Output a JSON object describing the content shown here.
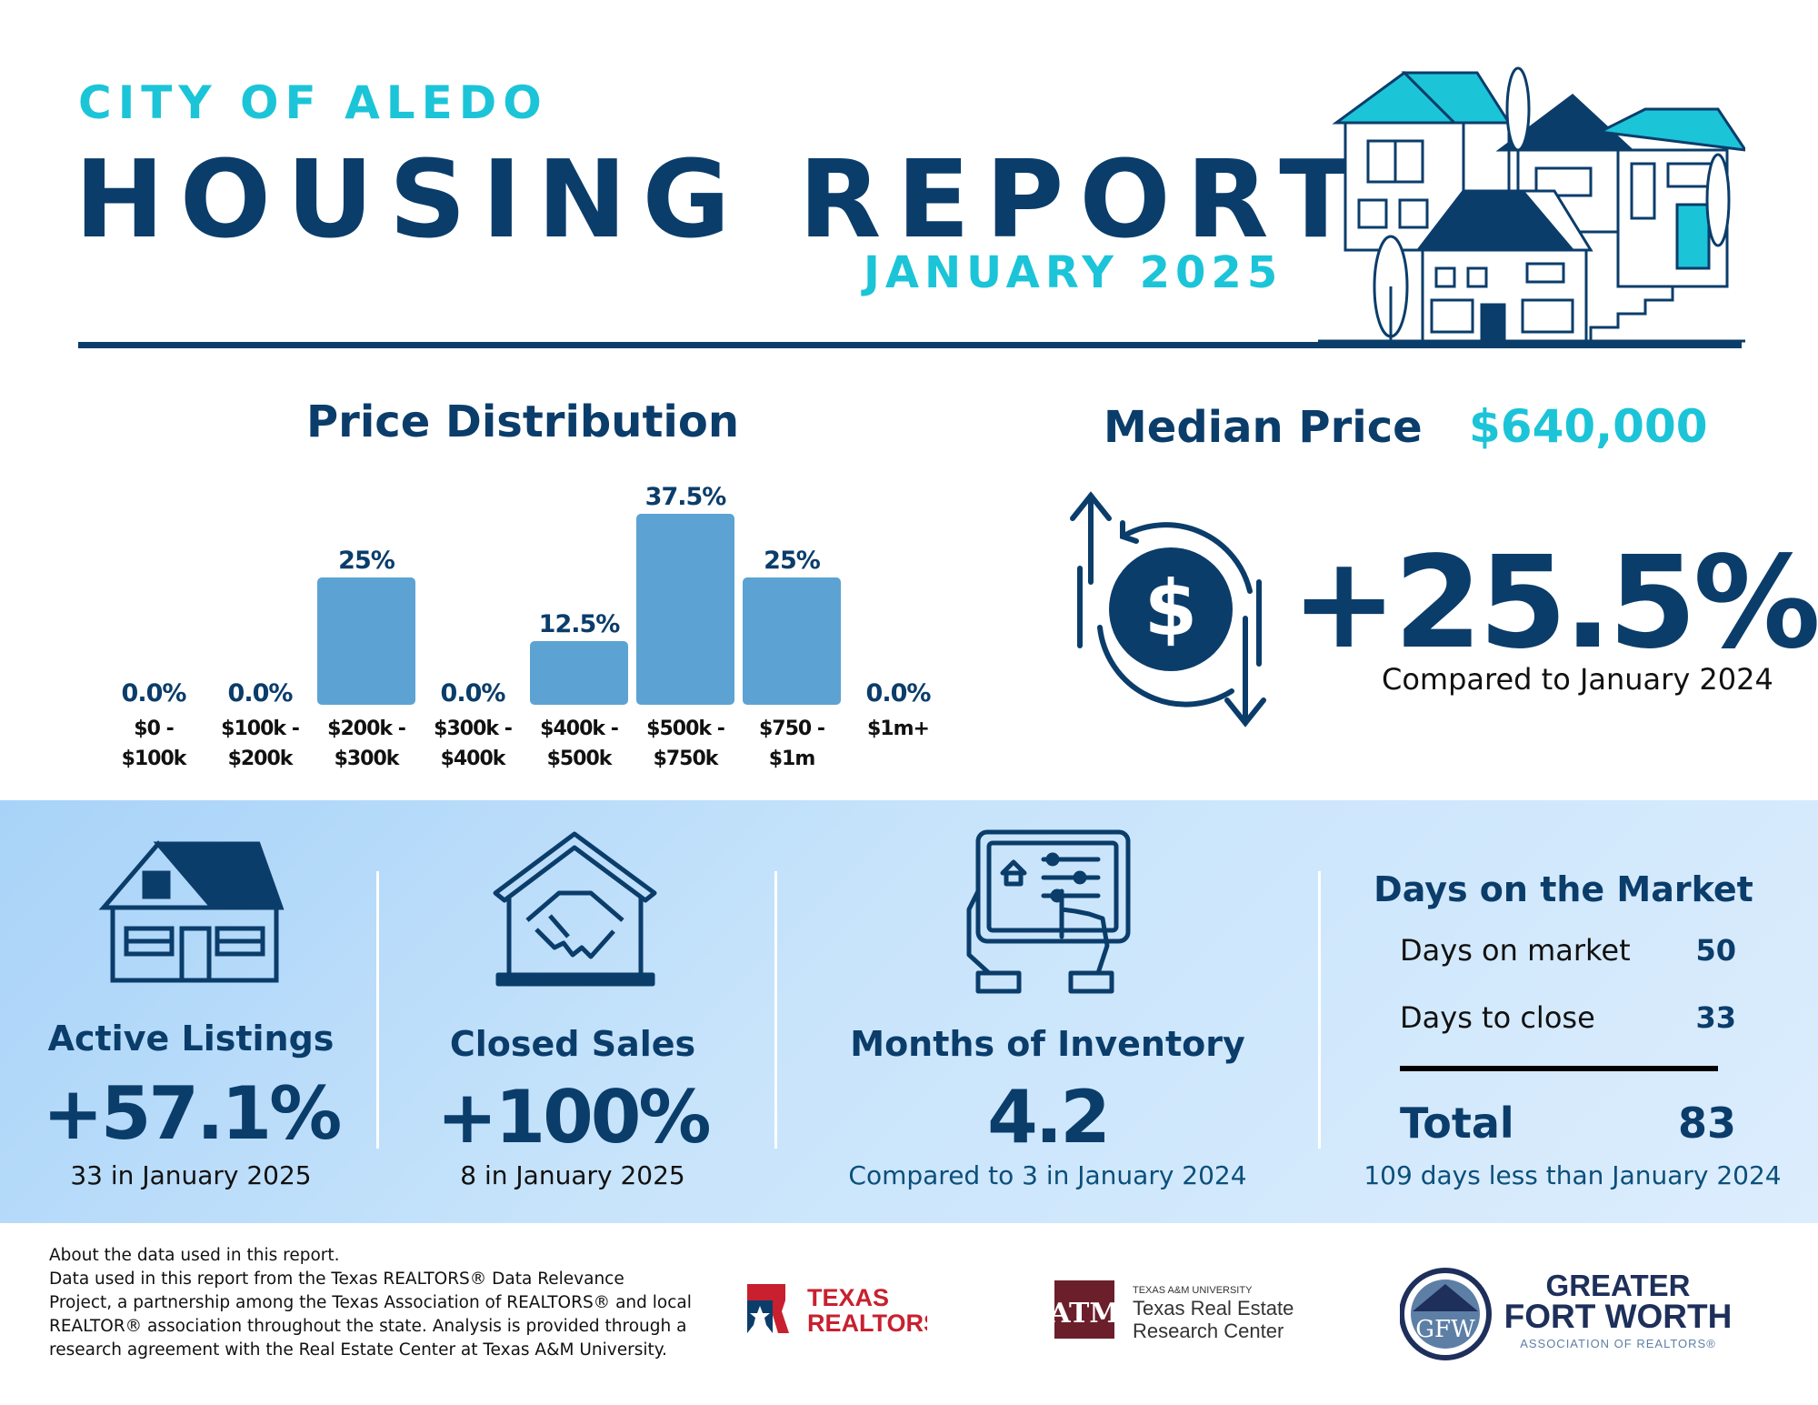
{
  "header": {
    "city": "CITY OF ALEDO",
    "title": "HOUSING REPORT",
    "month": "JANUARY 2025"
  },
  "price_distribution": {
    "title": "Price Distribution"
  },
  "chart_data": {
    "type": "bar",
    "title": "Price Distribution",
    "categories": [
      "$0 - $100k",
      "$100k - $200k",
      "$200k - $300k",
      "$300k - $400k",
      "$400k - $500k",
      "$500k - $750k",
      "$750 - $1m",
      "$1m+"
    ],
    "category_lines": [
      [
        "$0 -",
        "$100k"
      ],
      [
        "$100k -",
        "$200k"
      ],
      [
        "$200k -",
        "$300k"
      ],
      [
        "$300k -",
        "$400k"
      ],
      [
        "$400k -",
        "$500k"
      ],
      [
        "$500k -",
        "$750k"
      ],
      [
        "$750 -",
        "$1m"
      ],
      [
        "$1m+",
        ""
      ]
    ],
    "values": [
      0.0,
      0.0,
      25,
      0.0,
      12.5,
      37.5,
      25,
      0.0
    ],
    "value_labels": [
      "0.0%",
      "0.0%",
      "25%",
      "0.0%",
      "12.5%",
      "37.5%",
      "25%",
      "0.0%"
    ],
    "ylim": [
      0,
      37.5
    ],
    "grid": false,
    "bar_color": "#5ca3d3"
  },
  "median_price": {
    "label": "Median Price",
    "value": "$640,000",
    "change": "+25.5%",
    "compare": "Compared to January 2024"
  },
  "stats": {
    "active_listings": {
      "label": "Active Listings",
      "value": "+57.1%",
      "sub": "33 in January 2025"
    },
    "closed_sales": {
      "label": "Closed Sales",
      "value": "+100%",
      "sub": "8 in January 2025"
    },
    "months_inventory": {
      "label": "Months of Inventory",
      "value": "4.2",
      "sub": "Compared to 3 in January 2024"
    }
  },
  "days_on_market": {
    "title": "Days on the Market",
    "rows": [
      {
        "label": "Days on market",
        "value": "50"
      },
      {
        "label": "Days to close",
        "value": "33"
      }
    ],
    "total_label": "Total",
    "total_value": "83",
    "sub": "109 days less than January 2024"
  },
  "footer": {
    "about_lines": [
      "About the data used in this report.",
      "Data used in this report from the Texas REALTORS® Data Relevance",
      "Project, a partnership among the Texas Association of REALTORS® and local",
      "REALTOR® association throughout the state. Analysis is provided through a",
      "research agreement with the Real Estate Center at Texas A&M University."
    ],
    "logo_texas_realtors": [
      "TEXAS",
      "REALTORS"
    ],
    "logo_am": {
      "small": "TEXAS A&M UNIVERSITY",
      "line1": "Texas Real Estate",
      "line2": "Research Center"
    },
    "logo_gfw": {
      "line1": "GREATER",
      "line2": "FORT WORTH",
      "line3": "ASSOCIATION OF REALTORS®",
      "monogram": "GFW"
    }
  },
  "colors": {
    "navy": "#0b3d6b",
    "teal": "#1cc4d8",
    "bar": "#5ca3d3",
    "maroon": "#6b1f2a",
    "red": "#c8202f"
  }
}
